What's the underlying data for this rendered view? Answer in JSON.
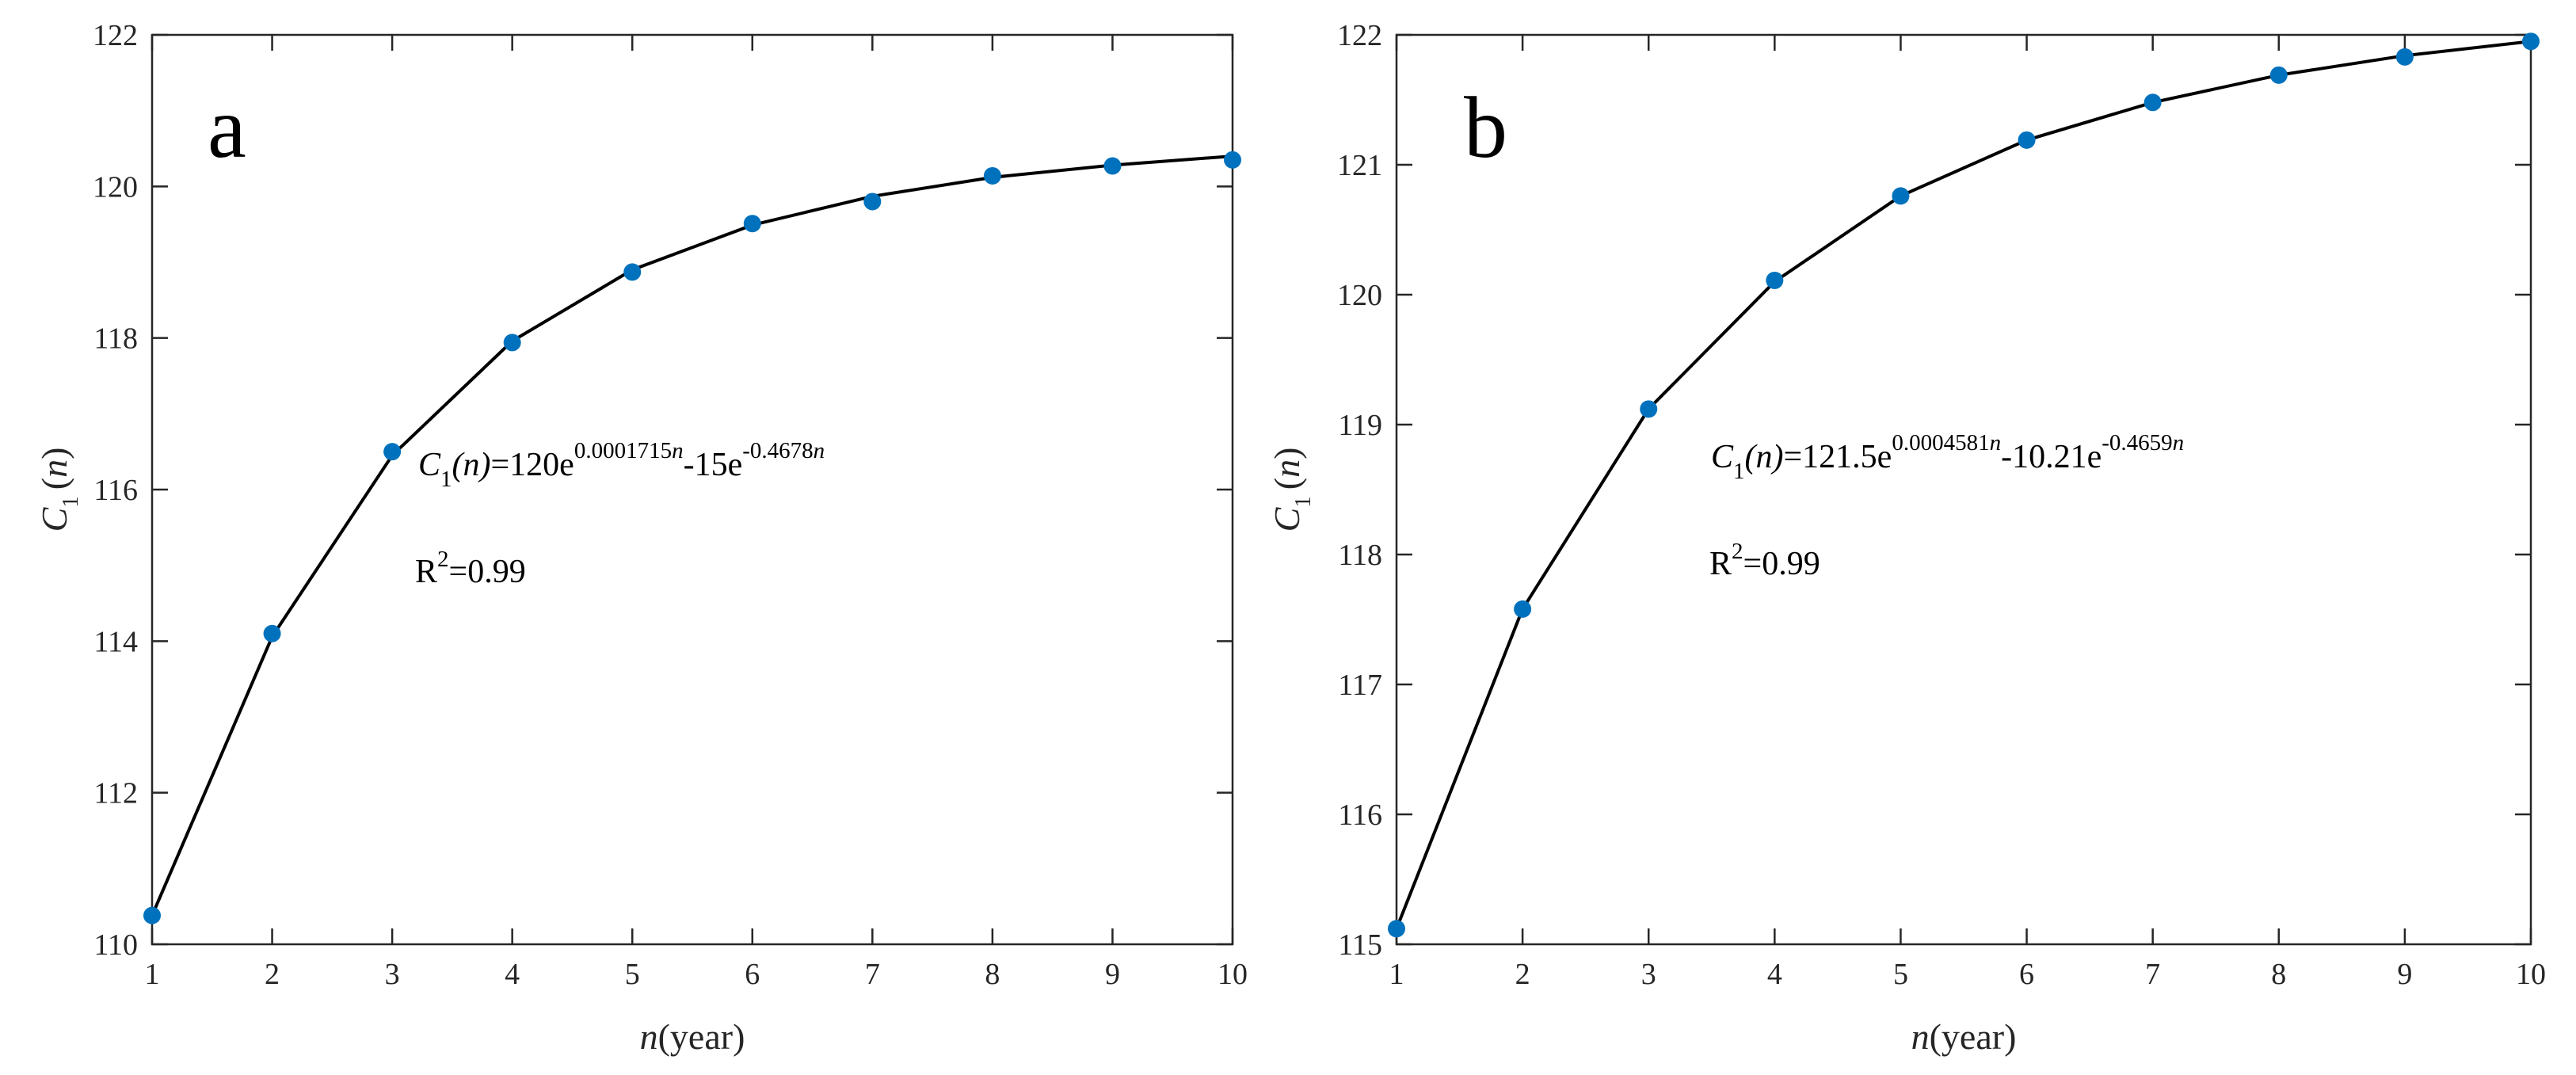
{
  "chart_data": [
    {
      "type": "scatter",
      "panel_label": "a",
      "xlabel": {
        "italic": "n",
        "rest": "(year)"
      },
      "ylabel": {
        "italic": "C",
        "sub": "1",
        "paren_open": "(",
        "arg": "n",
        "paren_close": ")"
      },
      "xlim": [
        1,
        10
      ],
      "ylim": [
        110,
        122
      ],
      "x_ticks": [
        1,
        2,
        3,
        4,
        5,
        6,
        7,
        8,
        9,
        10
      ],
      "y_ticks": [
        110,
        112,
        114,
        116,
        118,
        120,
        122
      ],
      "grid": false,
      "marker_color": "#0072BD",
      "line_color": "#000000",
      "series": [
        {
          "kind": "markers",
          "x": [
            1,
            2,
            3,
            4,
            5,
            6,
            7,
            8,
            9,
            10
          ],
          "y": [
            110.38,
            114.1,
            116.5,
            117.94,
            118.87,
            119.51,
            119.8,
            120.14,
            120.27,
            120.35
          ]
        },
        {
          "kind": "fit-line",
          "x": [
            1,
            2,
            3,
            4,
            5,
            6,
            7,
            8,
            9,
            10
          ],
          "y": [
            110.38,
            114.06,
            116.45,
            117.96,
            118.9,
            119.49,
            119.87,
            120.12,
            120.28,
            120.4
          ]
        }
      ],
      "equation": {
        "c": "C",
        "c_sub": "1",
        "arg": "(n)",
        "body_1": "=120e",
        "exp_1": "0.0001715",
        "exp_1_n": "n",
        "body_2": "-15e",
        "exp_2": "-0.4678",
        "exp_2_n": "n"
      },
      "r2": {
        "r": "R",
        "sup": "2",
        "value": "=0.99"
      }
    },
    {
      "type": "scatter",
      "panel_label": "b",
      "xlabel": {
        "italic": "n",
        "rest": "(year)"
      },
      "ylabel": {
        "italic": "C",
        "sub": "1",
        "paren_open": "(",
        "arg": "n",
        "paren_close": ")"
      },
      "xlim": [
        1,
        10
      ],
      "ylim": [
        115,
        122
      ],
      "x_ticks": [
        1,
        2,
        3,
        4,
        5,
        6,
        7,
        8,
        9,
        10
      ],
      "y_ticks": [
        115,
        116,
        117,
        118,
        119,
        120,
        121,
        122
      ],
      "grid": false,
      "marker_color": "#0072BD",
      "line_color": "#000000",
      "series": [
        {
          "kind": "markers",
          "x": [
            1,
            2,
            3,
            4,
            5,
            6,
            7,
            8,
            9,
            10
          ],
          "y": [
            115.12,
            117.58,
            119.12,
            120.11,
            120.76,
            121.19,
            121.48,
            121.69,
            121.83,
            121.95
          ]
        },
        {
          "kind": "fit-line",
          "x": [
            1,
            2,
            3,
            4,
            5,
            6,
            7,
            8,
            9,
            10
          ],
          "y": [
            115.12,
            117.58,
            119.12,
            120.1,
            120.76,
            121.19,
            121.48,
            121.69,
            121.84,
            121.95
          ]
        }
      ],
      "equation": {
        "c": "C",
        "c_sub": "1",
        "arg": "(n)",
        "body_1": "=121.5e",
        "exp_1": "0.0004581",
        "exp_1_n": "n",
        "body_2": "-10.21e",
        "exp_2": "-0.4659",
        "exp_2_n": "n"
      },
      "r2": {
        "r": "R",
        "sup": "2",
        "value": "=0.99"
      }
    }
  ]
}
